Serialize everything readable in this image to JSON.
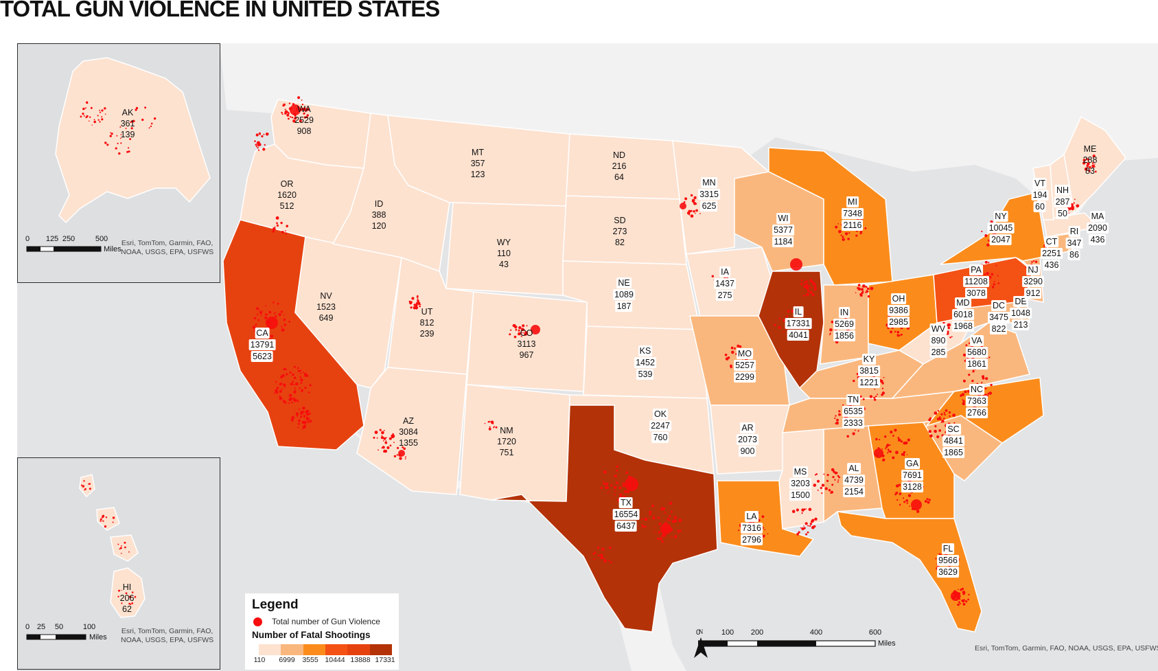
{
  "title": "TOTAL GUN VIOLENCE IN UNITED STATES",
  "colors": {
    "water": "#e3e4e6",
    "land": "#f2f2f2",
    "dots": "#f70d0d",
    "class_1": "#fde2d0",
    "class_2": "#fab77d",
    "class_3": "#fb8c1c",
    "class_4": "#f45114",
    "class_5": "#e64210",
    "class_6": "#b33208"
  },
  "legend": {
    "title": "Legend",
    "dot_label": "Total number of Gun Violence",
    "ramp_title": "Number of Fatal Shootings",
    "ticks": [
      "110",
      "6999",
      "3555",
      "10444",
      "13888",
      "17331"
    ]
  },
  "scalebar": {
    "labels": [
      "0",
      "100",
      "200",
      "400",
      "600"
    ],
    "unit": "Miles"
  },
  "attribution": "Esri, TomTom, Garmin, FAO, NOAA, USGS, EPA, USFWS",
  "insets": {
    "alaska": {
      "scale_labels": [
        "0",
        "125",
        "250",
        "500"
      ],
      "unit": "Miles",
      "credit_line1": "Esri, TomTom, Garmin, FAO,",
      "credit_line2": "NOAA, USGS, EPA, USFWS"
    },
    "hawaii": {
      "scale_labels": [
        "0",
        "25",
        "50",
        "100"
      ],
      "unit": "Miles",
      "credit_line1": "Esri, TomTom, Garmin, FAO,",
      "credit_line2": "NOAA, USGS, EPA, USFWS"
    }
  },
  "states": [
    {
      "abbr": "AK",
      "violence": "361",
      "fatal": "139",
      "class": 1
    },
    {
      "abbr": "HI",
      "violence": "206",
      "fatal": "62",
      "class": 1
    },
    {
      "abbr": "WA",
      "violence": "2529",
      "fatal": "908",
      "class": 1
    },
    {
      "abbr": "OR",
      "violence": "1620",
      "fatal": "512",
      "class": 1
    },
    {
      "abbr": "CA",
      "violence": "13791",
      "fatal": "5623",
      "class": 5
    },
    {
      "abbr": "NV",
      "violence": "1523",
      "fatal": "649",
      "class": 1
    },
    {
      "abbr": "ID",
      "violence": "388",
      "fatal": "120",
      "class": 1
    },
    {
      "abbr": "MT",
      "violence": "357",
      "fatal": "123",
      "class": 1
    },
    {
      "abbr": "WY",
      "violence": "110",
      "fatal": "43",
      "class": 1
    },
    {
      "abbr": "UT",
      "violence": "812",
      "fatal": "239",
      "class": 1
    },
    {
      "abbr": "AZ",
      "violence": "3084",
      "fatal": "1355",
      "class": 1
    },
    {
      "abbr": "CO",
      "violence": "3113",
      "fatal": "967",
      "class": 1
    },
    {
      "abbr": "NM",
      "violence": "1720",
      "fatal": "751",
      "class": 1
    },
    {
      "abbr": "ND",
      "violence": "216",
      "fatal": "64",
      "class": 1
    },
    {
      "abbr": "SD",
      "violence": "273",
      "fatal": "82",
      "class": 1
    },
    {
      "abbr": "NE",
      "violence": "1089",
      "fatal": "187",
      "class": 1
    },
    {
      "abbr": "KS",
      "violence": "1452",
      "fatal": "539",
      "class": 1
    },
    {
      "abbr": "OK",
      "violence": "2247",
      "fatal": "760",
      "class": 1
    },
    {
      "abbr": "TX",
      "violence": "16554",
      "fatal": "6437",
      "class": 6
    },
    {
      "abbr": "MN",
      "violence": "3315",
      "fatal": "625",
      "class": 1
    },
    {
      "abbr": "IA",
      "violence": "1437",
      "fatal": "275",
      "class": 1
    },
    {
      "abbr": "MO",
      "violence": "5257",
      "fatal": "2299",
      "class": 2
    },
    {
      "abbr": "AR",
      "violence": "2073",
      "fatal": "900",
      "class": 1
    },
    {
      "abbr": "LA",
      "violence": "7316",
      "fatal": "2796",
      "class": 3
    },
    {
      "abbr": "WI",
      "violence": "5377",
      "fatal": "1184",
      "class": 2
    },
    {
      "abbr": "IL",
      "violence": "17331",
      "fatal": "4041",
      "class": 6
    },
    {
      "abbr": "MI",
      "violence": "7348",
      "fatal": "2116",
      "class": 3
    },
    {
      "abbr": "IN",
      "violence": "5269",
      "fatal": "1856",
      "class": 2
    },
    {
      "abbr": "OH",
      "violence": "9386",
      "fatal": "2985",
      "class": 3
    },
    {
      "abbr": "KY",
      "violence": "3815",
      "fatal": "1221",
      "class": 2
    },
    {
      "abbr": "TN",
      "violence": "6535",
      "fatal": "2333",
      "class": 2
    },
    {
      "abbr": "MS",
      "violence": "3203",
      "fatal": "1500",
      "class": 1
    },
    {
      "abbr": "AL",
      "violence": "4739",
      "fatal": "2154",
      "class": 2
    },
    {
      "abbr": "GA",
      "violence": "7691",
      "fatal": "3128",
      "class": 3
    },
    {
      "abbr": "FL",
      "violence": "9566",
      "fatal": "3629",
      "class": 3
    },
    {
      "abbr": "SC",
      "violence": "4841",
      "fatal": "1865",
      "class": 2
    },
    {
      "abbr": "NC",
      "violence": "7363",
      "fatal": "2766",
      "class": 3
    },
    {
      "abbr": "VA",
      "violence": "5680",
      "fatal": "1861",
      "class": 2
    },
    {
      "abbr": "WV",
      "violence": "890",
      "fatal": "285",
      "class": 1
    },
    {
      "abbr": "PA",
      "violence": "11208",
      "fatal": "3078",
      "class": 4
    },
    {
      "abbr": "NY",
      "violence": "10045",
      "fatal": "2047",
      "class": 3
    },
    {
      "abbr": "MD",
      "violence": "6018",
      "fatal": "1968",
      "class": 2
    },
    {
      "abbr": "DC",
      "violence": "3475",
      "fatal": "822",
      "class": 2
    },
    {
      "abbr": "DE",
      "violence": "1048",
      "fatal": "213",
      "class": 2
    },
    {
      "abbr": "NJ",
      "violence": "3290",
      "fatal": "912",
      "class": 2
    },
    {
      "abbr": "CT",
      "violence": "2251",
      "fatal": "436",
      "class": 2
    },
    {
      "abbr": "RI",
      "violence": "347",
      "fatal": "86",
      "class": 1
    },
    {
      "abbr": "MA",
      "violence": "2090",
      "fatal": "436",
      "class": 1
    },
    {
      "abbr": "VT",
      "violence": "194",
      "fatal": "60",
      "class": 1
    },
    {
      "abbr": "NH",
      "violence": "287",
      "fatal": "50",
      "class": 1
    },
    {
      "abbr": "ME",
      "violence": "288",
      "fatal": "83",
      "class": 1
    }
  ]
}
